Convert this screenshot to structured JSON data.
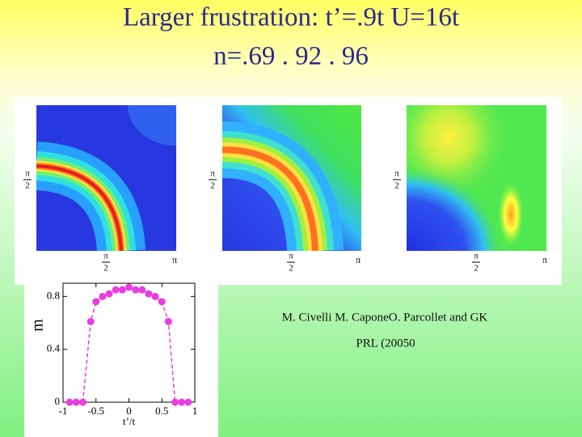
{
  "title": [
    "Larger frustration: t’=.9t U=16t",
    "n=.69 . 92 . 96"
  ],
  "panels": [
    {
      "y_tick": {
        "num": "π",
        "den": "2"
      },
      "x_ticks": [
        {
          "num": "π",
          "den": "2"
        },
        "π"
      ]
    },
    {
      "y_tick": {
        "num": "π",
        "den": "2"
      },
      "x_ticks": [
        {
          "num": "π",
          "den": "2"
        },
        "π"
      ]
    },
    {
      "y_tick": {
        "num": "π",
        "den": "2"
      },
      "x_ticks": [
        {
          "num": "π",
          "den": "2"
        },
        "π"
      ]
    }
  ],
  "chart_data": {
    "type": "line",
    "xlabel": "t’/t",
    "ylabel": "m",
    "x": [
      -0.9,
      -0.8,
      -0.7,
      -0.58,
      -0.5,
      -0.4,
      -0.3,
      -0.2,
      -0.1,
      0,
      0.1,
      0.2,
      0.3,
      0.4,
      0.5,
      0.6,
      0.7,
      0.8,
      0.9
    ],
    "series": [
      {
        "color": "#e83ee0",
        "values": [
          0,
          0,
          0,
          0.61,
          0.76,
          0.8,
          0.82,
          0.85,
          0.85,
          0.87,
          0.85,
          0.85,
          0.82,
          0.8,
          0.76,
          0.61,
          0,
          0,
          0
        ]
      }
    ],
    "xlim": [
      -1,
      1
    ],
    "ylim": [
      0,
      0.9
    ],
    "xticks": [
      -1,
      -0.5,
      0,
      0.5,
      1
    ],
    "yticks": [
      0,
      0.4,
      0.8
    ]
  },
  "citation": [
    "M. Civelli M.  CaponeO.  Parcollet and GK",
    "PRL (20050"
  ]
}
